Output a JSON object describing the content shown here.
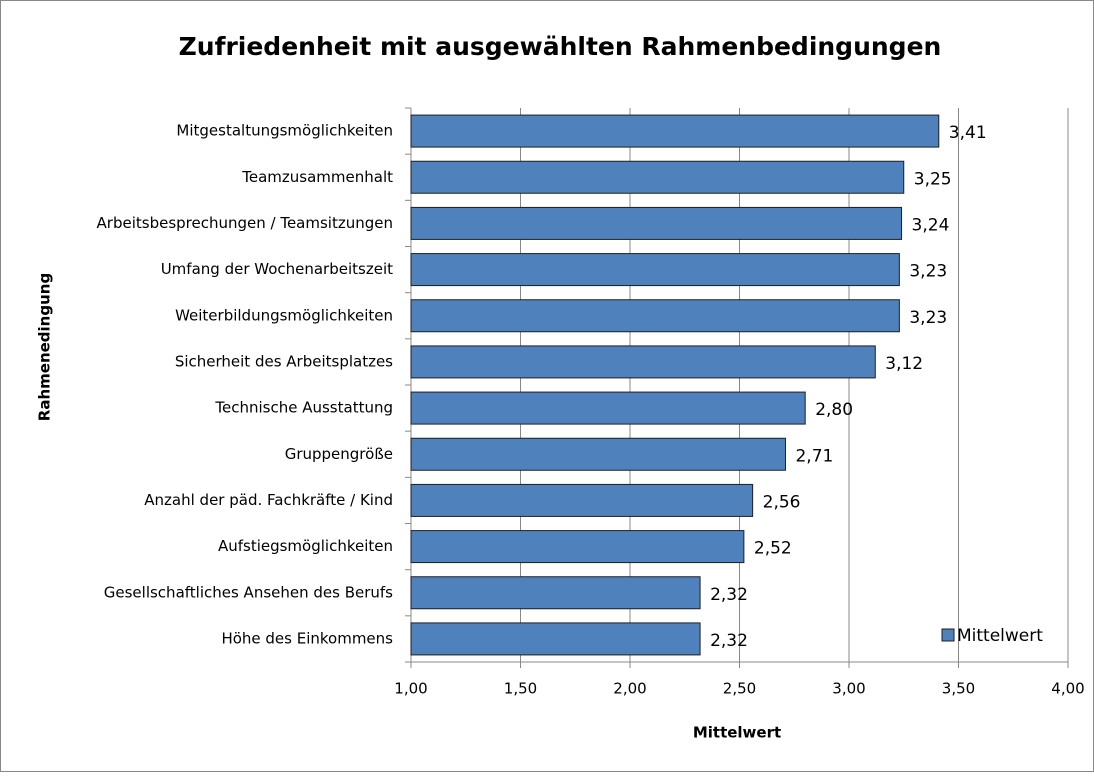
{
  "chart_data": {
    "type": "bar",
    "orientation": "horizontal",
    "title": "Zufriedenheit mit ausgewählten Rahmenbedingungen",
    "x_label": "Mittelwert",
    "y_label": "Rahmenedingung",
    "categories": [
      "Mitgestaltungsmöglichkeiten",
      "Teamzusammenhalt",
      "Arbeitsbesprechungen / Teamsitzungen",
      "Umfang der Wochenarbeitszeit",
      "Weiterbildungsmöglichkeiten",
      "Sicherheit des Arbeitsplatzes",
      "Technische Ausstattung",
      "Gruppengröße",
      "Anzahl der päd. Fachkräfte / Kind",
      "Aufstiegsmöglichkeiten",
      "Gesellschaftliches Ansehen des Berufs",
      "Höhe des Einkommens"
    ],
    "series": [
      {
        "name": "Mittelwert",
        "color": "#4f81bd",
        "values": [
          3.41,
          3.25,
          3.24,
          3.23,
          3.23,
          3.12,
          2.8,
          2.71,
          2.56,
          2.52,
          2.32,
          2.32
        ],
        "value_labels": [
          "3,41",
          "3,25",
          "3,24",
          "3,23",
          "3,23",
          "3,12",
          "2,80",
          "2,71",
          "2,56",
          "2,52",
          "2,32",
          "2,32"
        ]
      }
    ],
    "xlim": [
      1,
      4
    ],
    "xticks": [
      {
        "value": 1,
        "label": "1,00"
      },
      {
        "value": 1.5,
        "label": "1,50"
      },
      {
        "value": 2,
        "label": "2,00"
      },
      {
        "value": 2.5,
        "label": "2,50"
      },
      {
        "value": 3,
        "label": "3,00"
      },
      {
        "value": 3.5,
        "label": "3,50"
      },
      {
        "value": 4,
        "label": "4,00"
      }
    ],
    "grid": true,
    "legend": "lower right"
  }
}
